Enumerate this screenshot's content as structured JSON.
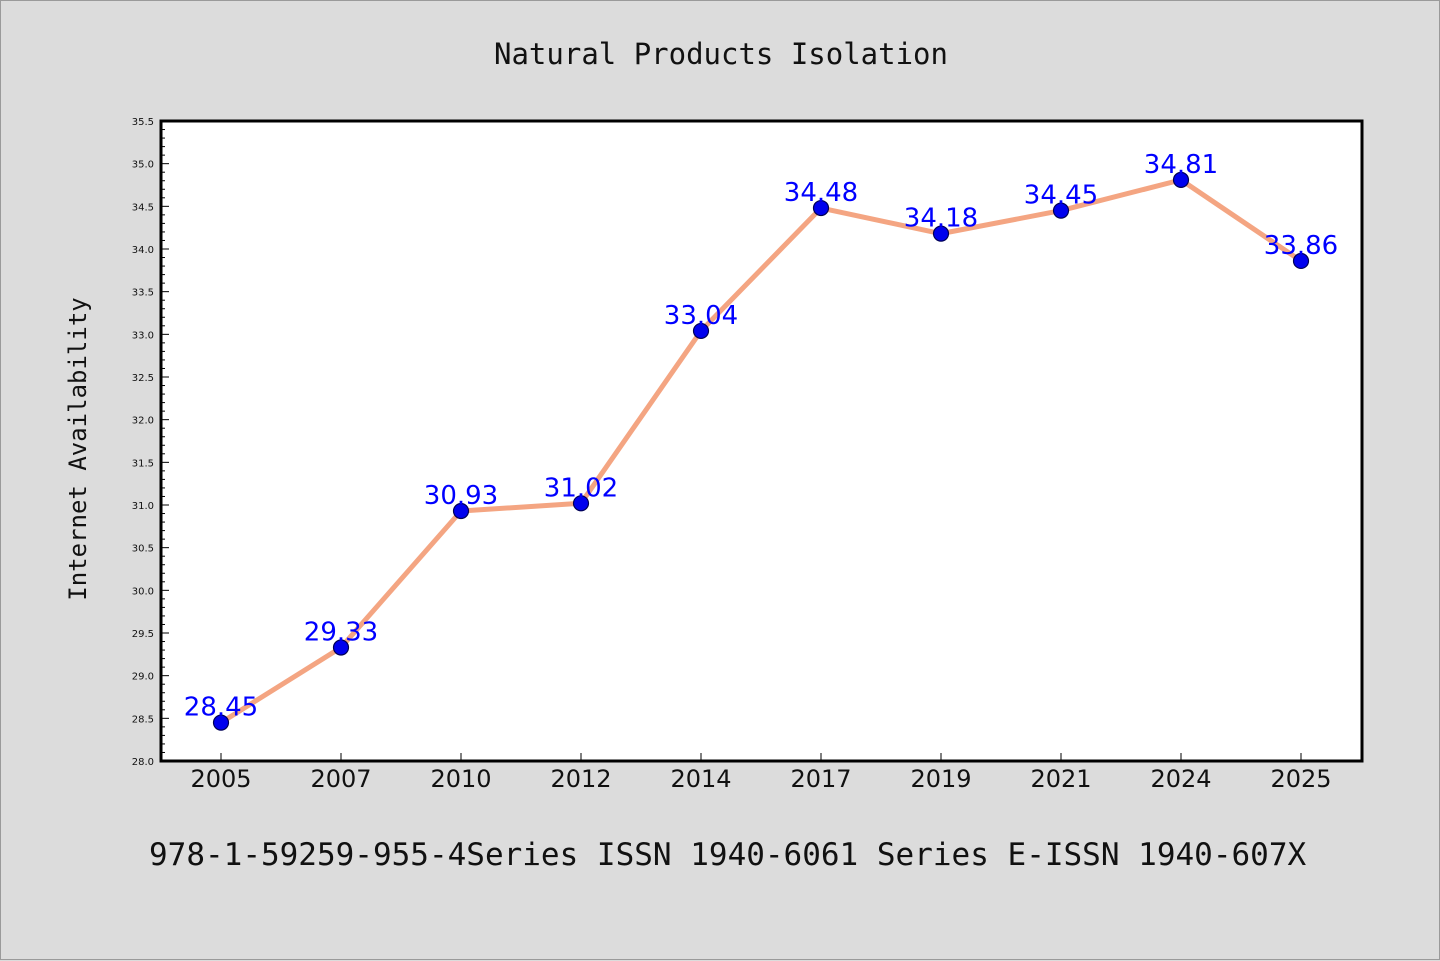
{
  "chart_data": {
    "type": "line",
    "title": "Natural Products Isolation",
    "xlabel": "",
    "ylabel": "Internet Availability",
    "categories": [
      "2005",
      "2007",
      "2010",
      "2012",
      "2014",
      "2017",
      "2019",
      "2021",
      "2024",
      "2025"
    ],
    "series": [
      {
        "values": [
          28.45,
          29.33,
          30.93,
          31.02,
          33.04,
          34.48,
          34.18,
          34.45,
          34.81,
          33.86
        ]
      }
    ],
    "data_labels": [
      "28.45",
      "29.33",
      "30.93",
      "31.02",
      "33.04",
      "34.48",
      "34.18",
      "34.45",
      "34.81",
      "33.86"
    ],
    "ylim": [
      28.0,
      35.5
    ],
    "y_ticks": [
      "28.0",
      "28.5",
      "29.0",
      "29.5",
      "30.0",
      "30.5",
      "31.0",
      "31.5",
      "32.0",
      "32.5",
      "33.0",
      "33.5",
      "34.0",
      "34.5",
      "35.0",
      "35.5"
    ],
    "grid": false,
    "legend": "none",
    "colors": {
      "line": "#f4a582",
      "marker_fill": "#0000ee",
      "marker_edge": "#000055",
      "data_label": "#0000ff",
      "plot_background": "#ffffff",
      "figure_background": "#dcdcdc"
    }
  },
  "footer": {
    "text": "978-1-59259-955-4Series ISSN 1940-6061 Series E-ISSN 1940-607X"
  }
}
